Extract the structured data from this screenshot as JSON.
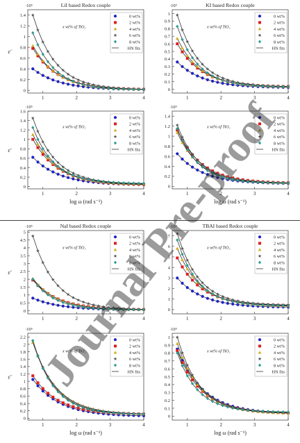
{
  "watermark": "Journal Pre-proof",
  "legend_labels": [
    "0 wt%",
    "2 wt%",
    "4 wt%",
    "6 wt%",
    "8 wt%",
    "HN fits"
  ],
  "annotation": "x wt% of TiO₂",
  "series_colors": [
    "#1f22c8",
    "#e01e1e",
    "#d4a81a",
    "#555555",
    "#2a9d8f"
  ],
  "chart_data": [
    {
      "type": "scatter",
      "title": "LiI based Redox couple",
      "exponent": "·10⁵",
      "xlabel": "",
      "ylabel": "ε′",
      "xlim": [
        0.55,
        4.0
      ],
      "ylim": [
        -0.05,
        1.5
      ],
      "xticks": [
        1,
        2,
        3,
        4
      ],
      "yticks": [
        0,
        0.2,
        0.4,
        0.6,
        0.8,
        1.0,
        1.2,
        1.4
      ],
      "series": [
        {
          "name": "0 wt%",
          "y_start": 0.4,
          "y_end": 0.01
        },
        {
          "name": "2 wt%",
          "y_start": 0.78,
          "y_end": 0.01
        },
        {
          "name": "4 wt%",
          "y_start": 0.83,
          "y_end": 0.01
        },
        {
          "name": "6 wt%",
          "y_start": 1.4,
          "y_end": 0.01
        },
        {
          "name": "8 wt%",
          "y_start": 1.07,
          "y_end": 0.01
        }
      ]
    },
    {
      "type": "scatter",
      "title": "KI based Redox couple",
      "exponent": "·10⁵",
      "xlabel": "",
      "ylabel": "",
      "xlim": [
        0.55,
        4.0
      ],
      "ylim": [
        -0.05,
        1.05
      ],
      "xticks": [
        1,
        2,
        3,
        4
      ],
      "yticks": [
        0,
        0.1,
        0.2,
        0.3,
        0.4,
        0.5,
        0.6,
        0.7,
        0.8,
        0.9,
        1.0
      ],
      "series": [
        {
          "name": "0 wt%",
          "y_start": 0.36,
          "y_end": 0.02
        },
        {
          "name": "2 wt%",
          "y_start": 0.6,
          "y_end": 0.03
        },
        {
          "name": "4 wt%",
          "y_start": 0.67,
          "y_end": 0.03
        },
        {
          "name": "6 wt%",
          "y_start": 0.98,
          "y_end": 0.03
        },
        {
          "name": "8 wt%",
          "y_start": 0.83,
          "y_end": 0.03
        }
      ]
    },
    {
      "type": "scatter",
      "title": "",
      "exponent": "·10⁵",
      "xlabel": "log ω (rad s⁻¹)",
      "ylabel": "ε′",
      "xlim": [
        0.55,
        4.0
      ],
      "ylim": [
        -0.05,
        1.6
      ],
      "xticks": [
        1,
        2,
        3,
        4
      ],
      "yticks": [
        0,
        0.2,
        0.4,
        0.6,
        0.8,
        1.0,
        1.2,
        1.4,
        1.6
      ],
      "series": [
        {
          "name": "0 wt%",
          "y_start": 0.62,
          "y_end": 0.03
        },
        {
          "name": "2 wt%",
          "y_start": 1.0,
          "y_end": 0.03
        },
        {
          "name": "4 wt%",
          "y_start": 1.1,
          "y_end": 0.04
        },
        {
          "name": "6 wt%",
          "y_start": 1.45,
          "y_end": 0.05
        },
        {
          "name": "8 wt%",
          "y_start": 1.25,
          "y_end": 0.06
        }
      ]
    },
    {
      "type": "scatter",
      "title": "",
      "exponent": "·10⁵",
      "xlabel": "log ω (rad s⁻¹)",
      "ylabel": "",
      "xlim": [
        0.55,
        4.0
      ],
      "ylim": [
        -0.05,
        1.5
      ],
      "xticks": [
        1,
        2,
        3,
        4
      ],
      "yticks": [
        0,
        0.2,
        0.4,
        0.6,
        0.8,
        1.0,
        1.2,
        1.4
      ],
      "series": [
        {
          "name": "0 wt%",
          "y_start": 0.65,
          "y_end": 0.05
        },
        {
          "name": "2 wt%",
          "y_start": 1.12,
          "y_end": 0.06
        },
        {
          "name": "4 wt%",
          "y_start": 1.07,
          "y_end": 0.06
        },
        {
          "name": "6 wt%",
          "y_start": 1.22,
          "y_end": 0.06
        },
        {
          "name": "8 wt%",
          "y_start": 1.15,
          "y_end": 0.06
        }
      ]
    },
    {
      "type": "scatter",
      "title": "NaI based Redox couple",
      "exponent": "·10⁵",
      "xlabel": "",
      "ylabel": "ε′",
      "xlim": [
        0.55,
        4.0
      ],
      "ylim": [
        -0.2,
        5.1
      ],
      "xticks": [
        1,
        2,
        3,
        4
      ],
      "yticks": [
        0,
        0.5,
        1,
        1.5,
        2,
        2.5,
        3,
        3.5,
        4,
        4.5,
        5
      ],
      "series": [
        {
          "name": "0 wt%",
          "y_start": 0.8,
          "y_end": 0.05
        },
        {
          "name": "2 wt%",
          "y_start": 1.95,
          "y_end": 0.05
        },
        {
          "name": "4 wt%",
          "y_start": 2.05,
          "y_end": 0.05
        },
        {
          "name": "6 wt%",
          "y_start": 4.75,
          "y_end": 0.05
        },
        {
          "name": "8 wt%",
          "y_start": 2.0,
          "y_end": 0.05
        }
      ]
    },
    {
      "type": "scatter",
      "title": "TBAI based Redox couple",
      "exponent": "·10⁴",
      "xlabel": "",
      "ylabel": "",
      "xlim": [
        0.55,
        4.0
      ],
      "ylim": [
        -0.4,
        7.5
      ],
      "xticks": [
        1,
        2,
        3,
        4
      ],
      "yticks": [
        0,
        1,
        2,
        3,
        4,
        5,
        6,
        7
      ],
      "series": [
        {
          "name": "0 wt%",
          "y_start": 3.0,
          "y_end": 0.2
        },
        {
          "name": "2 wt%",
          "y_start": 4.9,
          "y_end": 0.35
        },
        {
          "name": "4 wt%",
          "y_start": 5.8,
          "y_end": 0.3
        },
        {
          "name": "6 wt%",
          "y_start": 7.2,
          "y_end": 0.4
        },
        {
          "name": "8 wt%",
          "y_start": 6.6,
          "y_end": 0.35
        }
      ]
    },
    {
      "type": "scatter",
      "title": "",
      "exponent": "·10⁵",
      "xlabel": "log ω (rad s⁻¹)",
      "ylabel": "ε′",
      "xlim": [
        0.55,
        4.0
      ],
      "ylim": [
        -0.05,
        2.3
      ],
      "xticks": [
        1,
        2,
        3,
        4
      ],
      "yticks": [
        0,
        0.2,
        0.4,
        0.6,
        0.8,
        1.0,
        1.2,
        1.4,
        1.6,
        1.8,
        2.0,
        2.2
      ],
      "series": [
        {
          "name": "0 wt%",
          "y_start": 1.05,
          "y_end": 0.05
        },
        {
          "name": "2 wt%",
          "y_start": 1.15,
          "y_end": 0.1
        },
        {
          "name": "4 wt%",
          "y_start": 2.05,
          "y_end": 0.1
        },
        {
          "name": "6 wt%",
          "y_start": 2.1,
          "y_end": 0.1
        },
        {
          "name": "8 wt%",
          "y_start": 2.1,
          "y_end": 0.1
        }
      ]
    },
    {
      "type": "scatter",
      "title": "",
      "exponent": "·10⁵",
      "xlabel": "log ω (rad s⁻¹)",
      "ylabel": "",
      "xlim": [
        0.55,
        4.0
      ],
      "ylim": [
        -0.05,
        1.05
      ],
      "xticks": [
        1,
        2,
        3,
        4
      ],
      "yticks": [
        0,
        0.1,
        0.2,
        0.3,
        0.4,
        0.5,
        0.6,
        0.7,
        0.8,
        0.9,
        1.0
      ],
      "series": [
        {
          "name": "0 wt%",
          "y_start": 0.85,
          "y_end": 0.03
        },
        {
          "name": "2 wt%",
          "y_start": 0.83,
          "y_end": 0.03
        },
        {
          "name": "4 wt%",
          "y_start": 0.92,
          "y_end": 0.03
        },
        {
          "name": "6 wt%",
          "y_start": 1.0,
          "y_end": 0.04
        },
        {
          "name": "8 wt%",
          "y_start": 0.8,
          "y_end": 0.05
        }
      ]
    }
  ]
}
